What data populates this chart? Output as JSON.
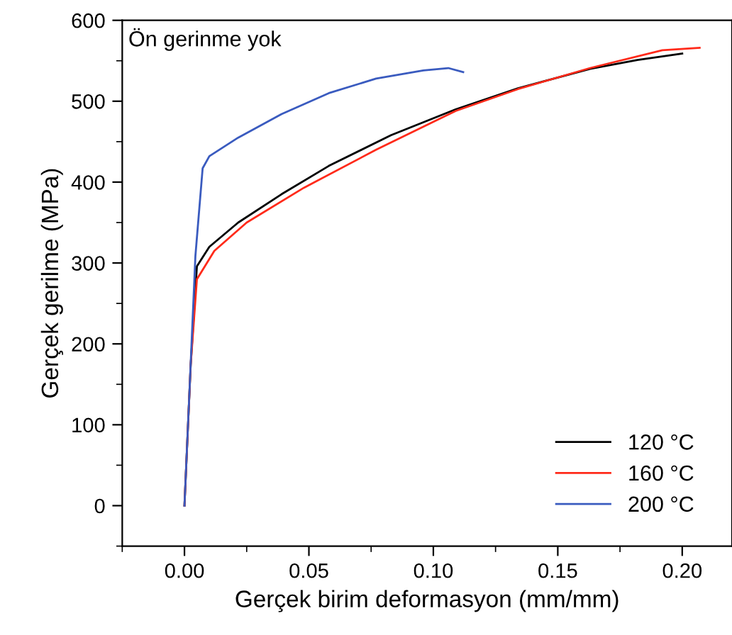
{
  "chart_data": {
    "type": "line",
    "xlabel": "Gerçek birim deformasyon (mm/mm)",
    "ylabel": "Gerçek gerilme (MPa)",
    "annotations": [
      "Ön gerinme yok"
    ],
    "xlim": [
      -0.025,
      0.22
    ],
    "ylim": [
      -50,
      600
    ],
    "xticks": [
      {
        "value": -0.025,
        "label": null
      },
      {
        "value": 0,
        "label": "0.00"
      },
      {
        "value": 0.025,
        "label": null
      },
      0.05,
      {
        "value": 0.075,
        "label": null
      },
      {
        "value": 0.1,
        "label": "0.10"
      },
      {
        "value": 0.125,
        "label": null
      },
      0.15,
      {
        "value": 0.175,
        "label": null
      },
      {
        "value": 0.2,
        "label": "0.20"
      }
    ],
    "yticks": [
      {
        "value": -50,
        "label": null
      },
      0,
      {
        "value": 50,
        "label": null
      },
      100,
      {
        "value": 150,
        "label": null
      },
      200,
      {
        "value": 250,
        "label": null
      },
      300,
      {
        "value": 350,
        "label": null
      },
      400,
      {
        "value": 450,
        "label": null
      },
      500,
      {
        "value": 550,
        "label": null
      },
      600
    ],
    "legend": "bottom right",
    "grid": false,
    "marker": "none",
    "line_style": "solid",
    "series": [
      {
        "name": "120 °C",
        "color": "#000000",
        "x": [
          0,
          0.0025,
          0.005,
          0.01,
          0.0216,
          0.039,
          0.058,
          0.083,
          0.109,
          0.134,
          0.163,
          0.182,
          0.2
        ],
        "values": [
          0,
          174,
          296,
          320,
          350,
          385,
          420,
          458,
          490,
          516,
          540,
          551,
          559
        ]
      },
      {
        "name": "160 °C",
        "color": "#ff2a1a",
        "x": [
          0,
          0.0025,
          0.005,
          0.012,
          0.025,
          0.048,
          0.077,
          0.109,
          0.134,
          0.163,
          0.192,
          0.207
        ],
        "values": [
          0,
          174,
          280,
          315,
          350,
          393,
          440,
          488,
          515,
          541,
          563,
          566
        ]
      },
      {
        "name": "200 °C",
        "color": "#3a5bbf",
        "x": [
          0,
          0.0044,
          0.0073,
          0.01,
          0.0216,
          0.039,
          0.058,
          0.077,
          0.096,
          0.106,
          0.112
        ],
        "values": [
          0,
          309,
          417,
          432,
          455,
          484,
          510,
          528,
          538,
          541,
          536
        ]
      }
    ]
  }
}
